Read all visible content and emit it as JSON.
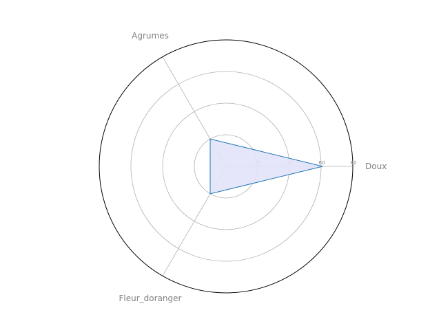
{
  "chart_data": {
    "type": "radar",
    "categories": [
      "Doux",
      "Agrumes",
      "Fleur_doranger"
    ],
    "series": [
      {
        "values": [
          61,
          20,
          20
        ]
      }
    ],
    "rlim": [
      0,
      80
    ],
    "r_ticks": [
      20,
      40,
      60,
      80
    ],
    "r_tick_labels": [
      "20",
      "40",
      "60",
      "80"
    ],
    "grid": true,
    "colors": {
      "line": "#1f77b4",
      "fill": "#e3e3fb",
      "grid": "#b0b0b0",
      "frame": "#000000",
      "text": "#808080"
    }
  }
}
